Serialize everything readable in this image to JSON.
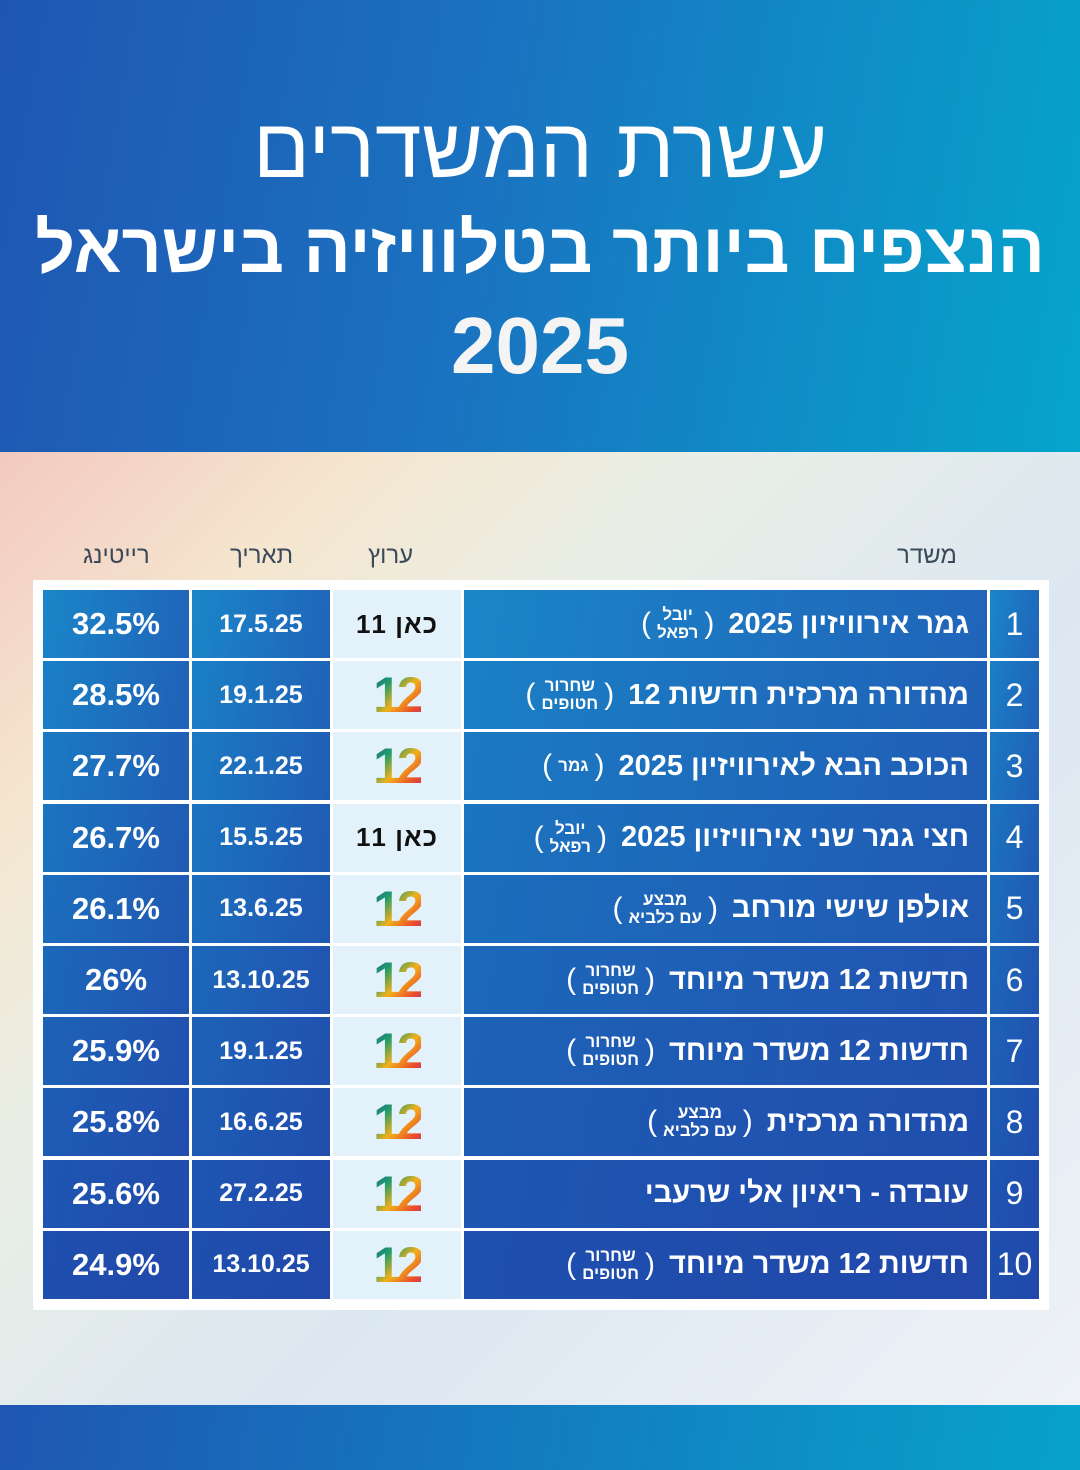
{
  "header": {
    "title_line1": "עשרת המשדרים",
    "title_line2": "הנצפים ביותר בטלוויזיה בישראל",
    "year": "2025"
  },
  "columns": {
    "rating": "רייטינג",
    "date": "תאריך",
    "channel": "ערוץ",
    "show": "משדר"
  },
  "rows": [
    {
      "rank": "1",
      "title": "גמר אירוויזיון 2025",
      "note1": "יובל",
      "note2": "רפאל",
      "channel": "כאן 11",
      "channel_icon": "kan11-logo",
      "date": "17.5.25",
      "rating": "32.5%"
    },
    {
      "rank": "2",
      "title": "מהדורה מרכזית חדשות 12",
      "note1": "שחרור",
      "note2": "חטופים",
      "channel": "12",
      "channel_icon": "channel12-logo",
      "date": "19.1.25",
      "rating": "28.5%"
    },
    {
      "rank": "3",
      "title": "הכוכב הבא לאירוויזיון 2025",
      "note1": "גמר",
      "note2": "",
      "channel": "12",
      "channel_icon": "channel12-logo",
      "date": "22.1.25",
      "rating": "27.7%"
    },
    {
      "rank": "4",
      "title": "חצי גמר שני אירוויזיון 2025",
      "note1": "יובל",
      "note2": "רפאל",
      "channel": "כאן 11",
      "channel_icon": "kan11-logo",
      "date": "15.5.25",
      "rating": "26.7%"
    },
    {
      "rank": "5",
      "title": "אולפן שישי מורחב",
      "note1": "מבצע",
      "note2": "עם כלביא",
      "channel": "12",
      "channel_icon": "channel12-logo",
      "date": "13.6.25",
      "rating": "26.1%"
    },
    {
      "rank": "6",
      "title": "חדשות 12 משדר מיוחד",
      "note1": "שחרור",
      "note2": "חטופים",
      "channel": "12",
      "channel_icon": "channel12-logo",
      "date": "13.10.25",
      "rating": "26%"
    },
    {
      "rank": "7",
      "title": "חדשות 12 משדר מיוחד",
      "note1": "שחרור",
      "note2": "חטופים",
      "channel": "12",
      "channel_icon": "channel12-logo",
      "date": "19.1.25",
      "rating": "25.9%"
    },
    {
      "rank": "8",
      "title": "מהדורה מרכזית",
      "note1": "מבצע",
      "note2": "עם כלביא",
      "channel": "12",
      "channel_icon": "channel12-logo",
      "date": "16.6.25",
      "rating": "25.8%"
    },
    {
      "rank": "9",
      "title": "עובדה - ריאיון אלי שרעבי",
      "note1": "",
      "note2": "",
      "channel": "12",
      "channel_icon": "channel12-logo",
      "date": "27.2.25",
      "rating": "25.6%"
    },
    {
      "rank": "10",
      "title": "חדשות 12 משדר מיוחד",
      "note1": "שחרור",
      "note2": "חטופים",
      "channel": "12",
      "channel_icon": "channel12-logo",
      "date": "13.10.25",
      "rating": "24.9%"
    }
  ],
  "colors": {
    "header_start": "#1f56b3",
    "header_end": "#05a5cc",
    "cell_start": "#1a86c8",
    "cell_end": "#2150ae",
    "channel_bg": "#e3f1fb"
  }
}
